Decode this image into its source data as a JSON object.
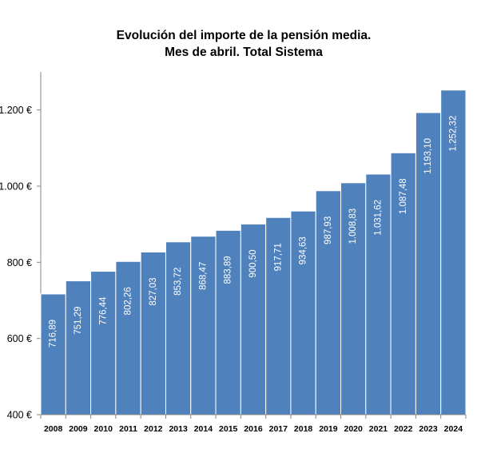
{
  "chart_data": {
    "type": "bar",
    "title": "Evolución del importe de la pensión media.",
    "subtitle": "Mes de abril. Total Sistema",
    "xlabel": "",
    "ylabel": "",
    "categories": [
      "2008",
      "2009",
      "2010",
      "2011",
      "2012",
      "2013",
      "2014",
      "2015",
      "2016",
      "2017",
      "2018",
      "2019",
      "2020",
      "2021",
      "2022",
      "2023",
      "2024"
    ],
    "values": [
      716.89,
      751.29,
      776.44,
      802.26,
      827.03,
      853.72,
      868.47,
      883.89,
      900.5,
      917.71,
      934.63,
      987.93,
      1008.83,
      1031.62,
      1087.48,
      1193.1,
      1252.32
    ],
    "data_labels": [
      "716,89",
      "751,29",
      "776,44",
      "802,26",
      "827,03",
      "853,72",
      "868,47",
      "883,89",
      "900,50",
      "917,71",
      "934,63",
      "987,93",
      "1.008,83",
      "1.031,62",
      "1.087,48",
      "1.193,10",
      "1.252,32"
    ],
    "ylim": [
      400,
      1300
    ],
    "y_ticks": [
      400,
      600,
      800,
      1000,
      1200
    ],
    "y_tick_labels": [
      "400 €",
      "600 €",
      "800 €",
      "1.000 €",
      "1.200 €"
    ],
    "grid": false,
    "legend": "none",
    "bar_color": "#4F81BD",
    "bar_edge_color": "#FFFFFF",
    "axis_color": "#868686"
  }
}
